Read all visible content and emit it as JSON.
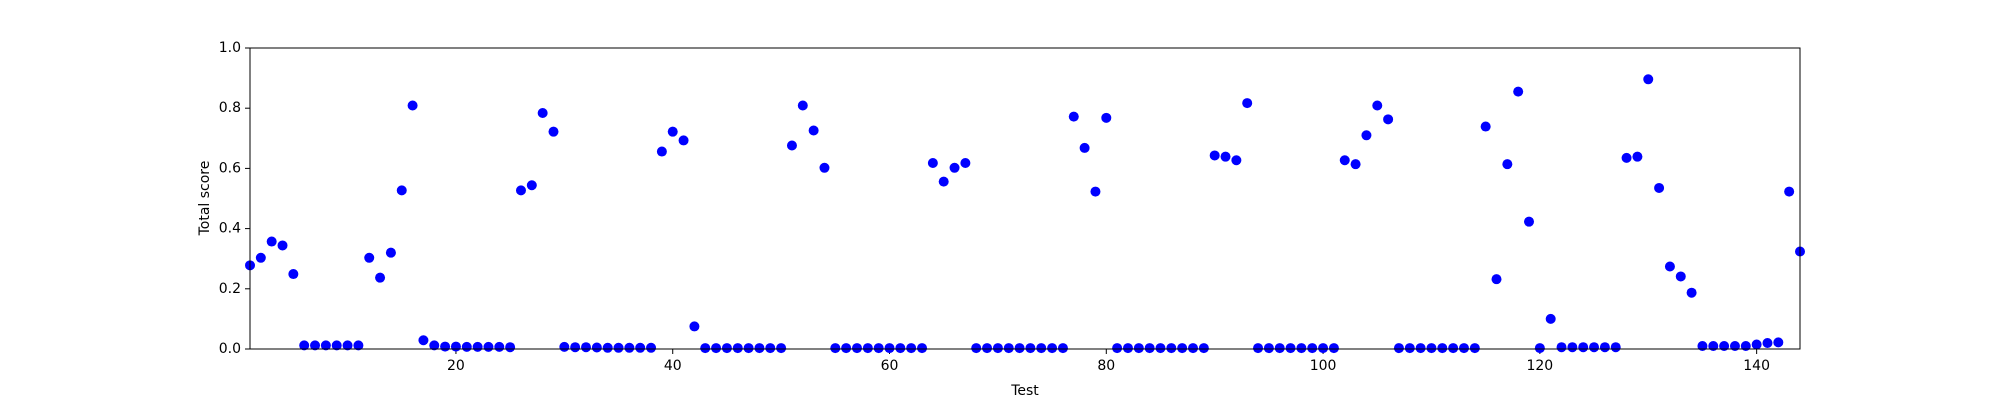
{
  "chart_data": {
    "type": "scatter",
    "xlabel": "Test",
    "ylabel": "Total score",
    "color": "#0000ff",
    "x": [
      1,
      2,
      3,
      4,
      5,
      6,
      7,
      8,
      9,
      10,
      11,
      12,
      13,
      14,
      15,
      16,
      17,
      18,
      19,
      20,
      21,
      22,
      23,
      24,
      25,
      26,
      27,
      28,
      29,
      30,
      31,
      32,
      33,
      34,
      35,
      36,
      37,
      38,
      39,
      40,
      41,
      42,
      43,
      44,
      45,
      46,
      47,
      48,
      49,
      50,
      51,
      52,
      53,
      54,
      55,
      56,
      57,
      58,
      59,
      60,
      61,
      62,
      63,
      64,
      65,
      66,
      67,
      68,
      69,
      70,
      71,
      72,
      73,
      74,
      75,
      76,
      77,
      78,
      79,
      80,
      81,
      82,
      83,
      84,
      85,
      86,
      87,
      88,
      89,
      90,
      91,
      92,
      93,
      94,
      95,
      96,
      97,
      98,
      99,
      100,
      101,
      102,
      103,
      104,
      105,
      106,
      107,
      108,
      109,
      110,
      111,
      112,
      113,
      114,
      115,
      116,
      117,
      118,
      119,
      120,
      121,
      122,
      123,
      124,
      125,
      126,
      127,
      128,
      129,
      130,
      131,
      132,
      133,
      134,
      135,
      136,
      137,
      138,
      139,
      140,
      141,
      142,
      143,
      144
    ],
    "values": [
      0.278,
      0.303,
      0.357,
      0.344,
      0.249,
      0.012,
      0.012,
      0.012,
      0.012,
      0.012,
      0.012,
      0.303,
      0.237,
      0.32,
      0.527,
      0.809,
      0.029,
      0.012,
      0.008,
      0.008,
      0.007,
      0.007,
      0.007,
      0.007,
      0.006,
      0.527,
      0.544,
      0.784,
      0.722,
      0.007,
      0.006,
      0.006,
      0.005,
      0.004,
      0.004,
      0.004,
      0.004,
      0.004,
      0.656,
      0.722,
      0.693,
      0.075,
      0.003,
      0.003,
      0.003,
      0.003,
      0.003,
      0.003,
      0.003,
      0.003,
      0.676,
      0.809,
      0.726,
      0.602,
      0.003,
      0.003,
      0.003,
      0.003,
      0.003,
      0.003,
      0.003,
      0.003,
      0.003,
      0.618,
      0.556,
      0.602,
      0.618,
      0.003,
      0.003,
      0.003,
      0.003,
      0.003,
      0.003,
      0.003,
      0.003,
      0.003,
      0.772,
      0.668,
      0.523,
      0.768,
      0.003,
      0.003,
      0.003,
      0.003,
      0.003,
      0.003,
      0.003,
      0.003,
      0.003,
      0.643,
      0.639,
      0.627,
      0.817,
      0.003,
      0.003,
      0.003,
      0.003,
      0.003,
      0.003,
      0.003,
      0.003,
      0.627,
      0.614,
      0.71,
      0.809,
      0.763,
      0.003,
      0.003,
      0.003,
      0.003,
      0.003,
      0.003,
      0.003,
      0.003,
      0.739,
      0.232,
      0.614,
      0.855,
      0.423,
      0.003,
      0.1,
      0.006,
      0.006,
      0.006,
      0.006,
      0.006,
      0.006,
      0.635,
      0.639,
      0.896,
      0.535,
      0.274,
      0.241,
      0.187,
      0.01,
      0.01,
      0.01,
      0.01,
      0.01,
      0.015,
      0.02,
      0.022,
      0.523,
      0.324
    ],
    "xlim": [
      1,
      144
    ],
    "xticks": [
      20,
      40,
      60,
      80,
      100,
      120,
      140
    ],
    "ylim": [
      0,
      1
    ],
    "yticks": [
      {
        "value": 0,
        "label": "0.0"
      },
      0.2,
      0.4,
      0.6,
      0.8,
      {
        "value": 1,
        "label": "1.0"
      }
    ]
  }
}
